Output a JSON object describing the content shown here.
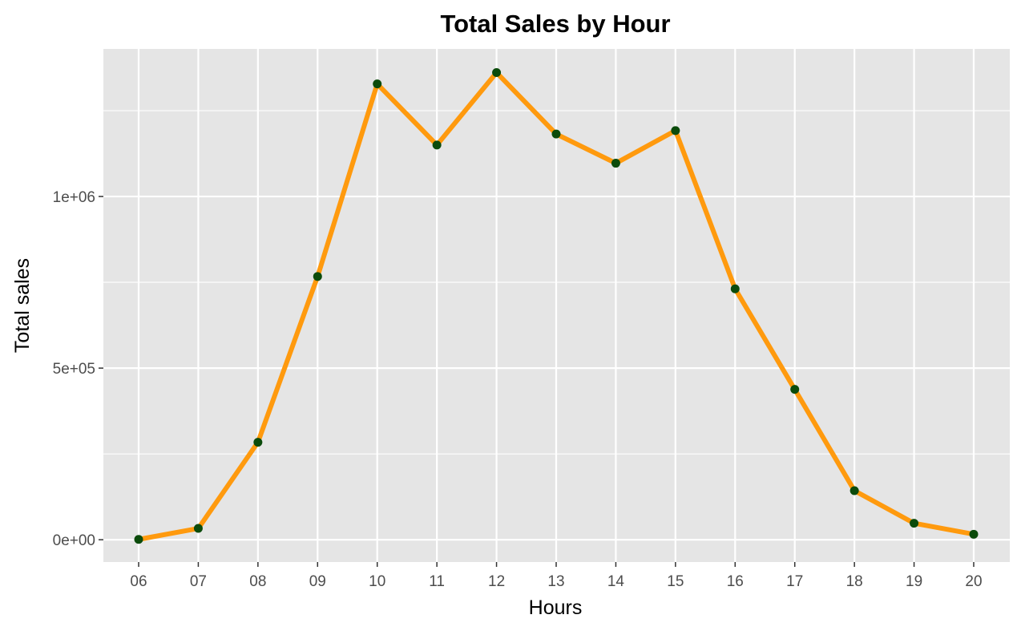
{
  "chart_data": {
    "type": "line",
    "title": "Total Sales by Hour",
    "xlabel": "Hours",
    "ylabel": "Total sales",
    "categories": [
      "06",
      "07",
      "08",
      "09",
      "10",
      "11",
      "12",
      "13",
      "14",
      "15",
      "16",
      "17",
      "18",
      "19",
      "20"
    ],
    "values": [
      1000,
      33000,
      284000,
      767000,
      1328000,
      1150000,
      1361000,
      1182000,
      1097000,
      1192000,
      731000,
      438000,
      143000,
      48000,
      16000
    ],
    "ylim": [
      -65000,
      1430000
    ],
    "yticks": [
      {
        "value": 0,
        "label": "0e+00"
      },
      {
        "value": 500000,
        "label": "5e+05"
      },
      {
        "value": 1000000,
        "label": "1e+06"
      }
    ],
    "y_minor_gridlines": [
      250000,
      750000,
      1250000
    ],
    "grid": true,
    "legend": "none",
    "colors": {
      "line": "#ff9a0e",
      "point": "#0b4b0b",
      "panel": "#e5e5e5",
      "grid": "#ffffff"
    }
  }
}
